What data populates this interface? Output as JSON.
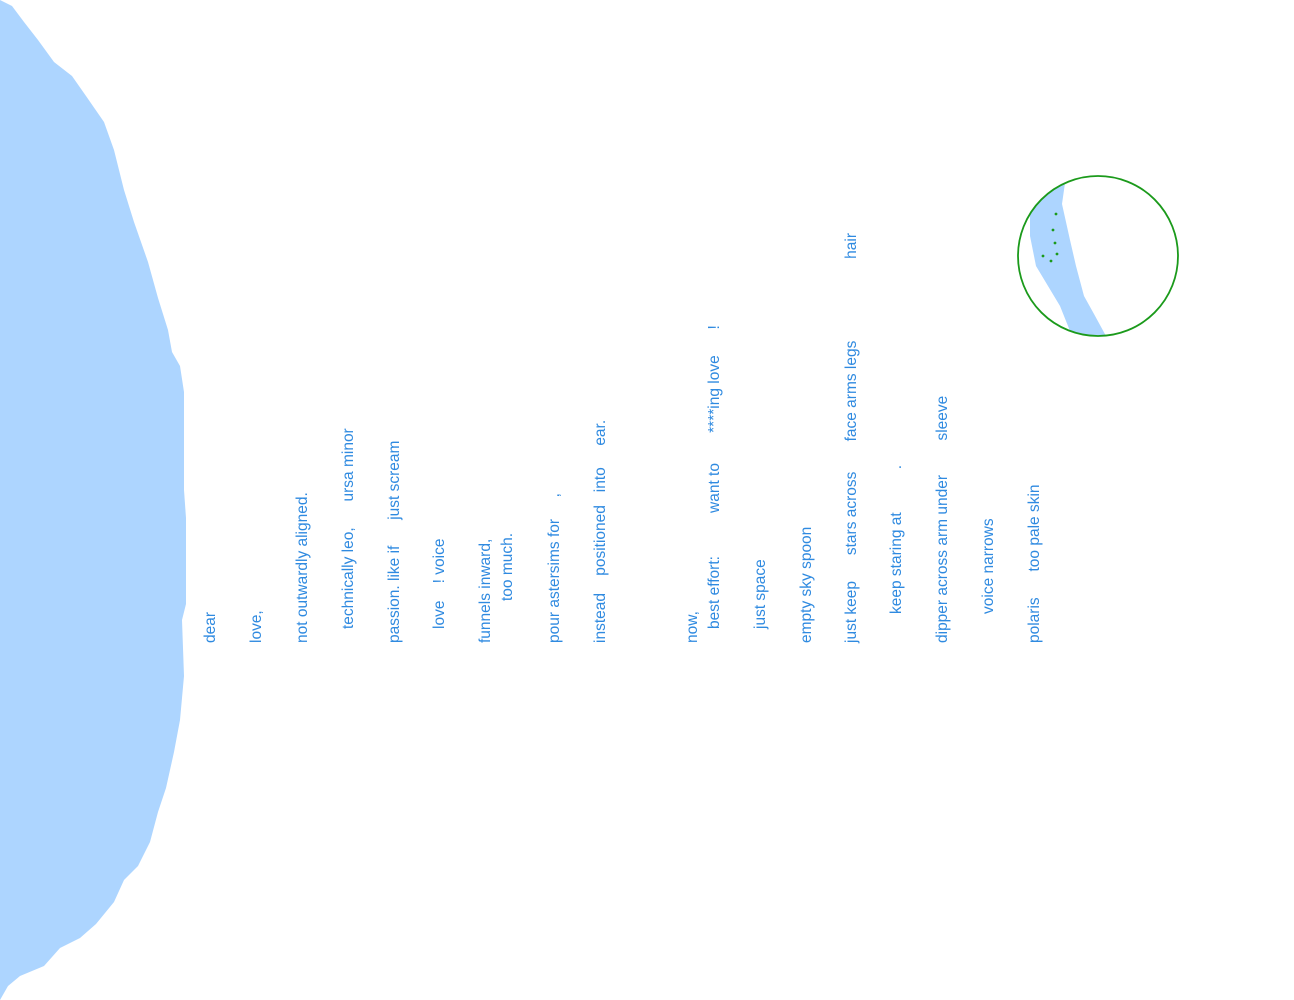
{
  "colors": {
    "background": "#ffffff",
    "shore_fill": "#add5ff",
    "text": "#2f8ae0",
    "inset_ring": "#1b9a1b",
    "inset_stars": "#1b9a1b"
  },
  "poem": {
    "lines": [
      "dear",
      "love,",
      "not outwardly aligned.",
      "technically leo,      ursa minor",
      "passion. like if      just scream",
      "love    ! voice",
      "funnels inward,",
      "too much.",
      "pour astersims for     ,",
      "instead    positioned   into     ear.",
      "now,",
      "best effort:          want to       ****ing love      !",
      "just space",
      "empty sky spoon",
      "just keep      stars across       face arms legs                   hair",
      "keep staring at          .",
      "dipper across arm under        sleeve",
      "voice narrows",
      "polaris      too pale skin"
    ]
  }
}
